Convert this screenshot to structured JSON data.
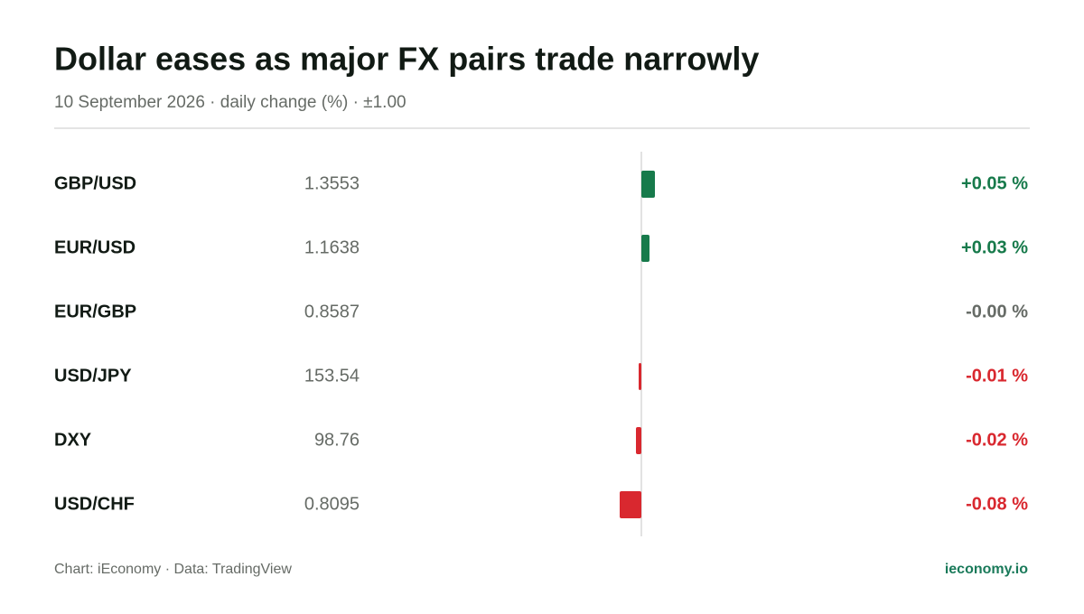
{
  "chart_data": {
    "type": "bar",
    "title": "Dollar eases as major FX pairs trade narrowly",
    "subtitle": "10 September 2026 · daily change (%) · ±1.00",
    "categories": [
      "GBP/USD",
      "EUR/USD",
      "EUR/GBP",
      "USD/JPY",
      "DXY",
      "USD/CHF"
    ],
    "prices": [
      1.3553,
      1.1638,
      0.8587,
      153.54,
      98.76,
      0.8095
    ],
    "values": [
      0.05,
      0.03,
      0,
      -0.01,
      -0.02,
      -0.08
    ],
    "value_labels": [
      "+0.05 %",
      "+0.03 %",
      "-0.00 %",
      "-0.01 %",
      "-0.02 %",
      "-0.08 %"
    ],
    "xlim": [
      -1,
      1
    ],
    "positive_color": "#177a4b",
    "negative_color": "#d9282f",
    "neutral_color": "#666b66",
    "source": "Chart: iEconomy · Data: TradingView",
    "brand": "ieconomy.io"
  }
}
